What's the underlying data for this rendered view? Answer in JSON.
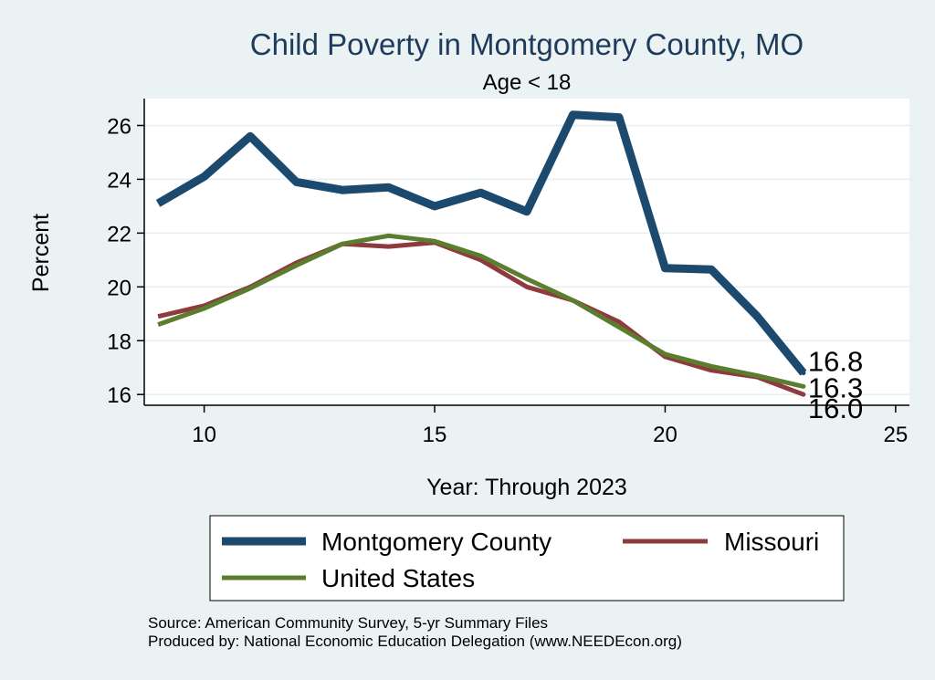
{
  "chart_data": {
    "type": "line",
    "title": "Child Poverty in Montgomery County, MO",
    "subtitle": "Age < 18",
    "xlabel": "Year: Through 2023",
    "ylabel": "Percent",
    "xlim": [
      8.7,
      25.3
    ],
    "ylim": [
      15.6,
      27.0
    ],
    "xticks": [
      10,
      15,
      20,
      25
    ],
    "yticks": [
      16,
      18,
      20,
      22,
      24,
      26
    ],
    "grid": true,
    "legend_position": "bottom",
    "series": [
      {
        "name": "Montgomery County",
        "color": "#1b4a6e",
        "x": [
          9,
          10,
          11,
          12,
          13,
          14,
          15,
          16,
          17,
          18,
          19,
          20,
          21,
          22,
          23
        ],
        "values": [
          23.1,
          24.1,
          25.6,
          23.9,
          23.6,
          23.7,
          23.0,
          23.5,
          22.8,
          26.4,
          26.3,
          20.7,
          20.65,
          18.9,
          16.8
        ],
        "end_label": "16.8"
      },
      {
        "name": "Missouri",
        "color": "#8e3a3f",
        "x": [
          9,
          10,
          11,
          12,
          13,
          14,
          15,
          16,
          17,
          18,
          19,
          20,
          21,
          22,
          23
        ],
        "values": [
          18.9,
          19.3,
          20.0,
          20.9,
          21.6,
          21.5,
          21.65,
          21.0,
          20.0,
          19.5,
          18.7,
          17.4,
          16.9,
          16.65,
          16.0
        ],
        "end_label": "16.0"
      },
      {
        "name": "United States",
        "color": "#5a7d2e",
        "x": [
          9,
          10,
          11,
          12,
          13,
          14,
          15,
          16,
          17,
          18,
          19,
          20,
          21,
          22,
          23
        ],
        "values": [
          18.6,
          19.2,
          19.95,
          20.8,
          21.6,
          21.9,
          21.7,
          21.15,
          20.3,
          19.5,
          18.5,
          17.5,
          17.05,
          16.7,
          16.3
        ],
        "end_label": "16.3"
      }
    ],
    "notes": [
      "Source: American Community Survey, 5-yr Summary Files",
      "Produced by: National Economic Education Delegation (www.NEEDEcon.org)"
    ]
  }
}
